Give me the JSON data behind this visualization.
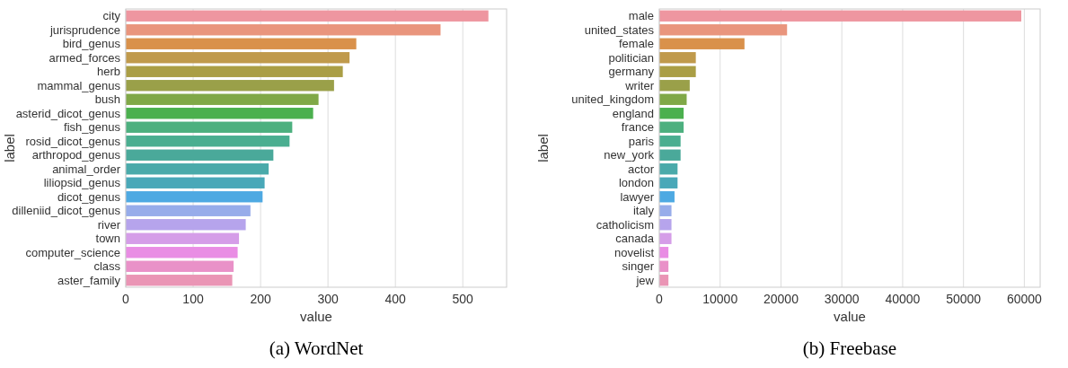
{
  "chart_data": [
    {
      "type": "bar",
      "orientation": "horizontal",
      "title": "(a) WordNet",
      "xlabel": "value",
      "ylabel": "label",
      "grid": "x",
      "categories": [
        "city",
        "jurisprudence",
        "bird_genus",
        "armed_forces",
        "herb",
        "mammal_genus",
        "bush",
        "asterid_dicot_genus",
        "fish_genus",
        "rosid_dicot_genus",
        "arthropod_genus",
        "animal_order",
        "liliopsid_genus",
        "dicot_genus",
        "dilleniid_dicot_genus",
        "river",
        "town",
        "computer_science",
        "class",
        "aster_family"
      ],
      "values": [
        538,
        467,
        342,
        332,
        322,
        309,
        286,
        278,
        247,
        243,
        219,
        212,
        206,
        203,
        185,
        178,
        168,
        166,
        160,
        158
      ],
      "colors": [
        "#ee96a0",
        "#e9957d",
        "#d9914b",
        "#c09a4c",
        "#aa9e45",
        "#9aa049",
        "#80a847",
        "#4bb04e",
        "#4db07f",
        "#4aae90",
        "#4aa99a",
        "#4aaaaa",
        "#49a8b8",
        "#4ea9e2",
        "#97acea",
        "#b6a4ec",
        "#d59de8",
        "#e98de4",
        "#e991c8",
        "#ea95b5"
      ],
      "xlim": [
        0,
        565
      ],
      "xticks": [
        0,
        100,
        200,
        300,
        400,
        500
      ]
    },
    {
      "type": "bar",
      "orientation": "horizontal",
      "title": "(b) Freebase",
      "xlabel": "value",
      "ylabel": "label",
      "grid": "x",
      "categories": [
        "male",
        "united_states",
        "female",
        "politician",
        "germany",
        "writer",
        "united_kingdom",
        "england",
        "france",
        "paris",
        "new_york",
        "actor",
        "london",
        "lawyer",
        "italy",
        "catholicism",
        "canada",
        "novelist",
        "singer",
        "jew"
      ],
      "values": [
        59500,
        21000,
        14000,
        6000,
        6000,
        5000,
        4500,
        4000,
        4000,
        3500,
        3500,
        3000,
        3000,
        2500,
        2000,
        2000,
        2000,
        1500,
        1500,
        1500
      ],
      "colors": [
        "#ee96a0",
        "#e9957d",
        "#d9914b",
        "#c09a4c",
        "#aa9e45",
        "#9aa049",
        "#80a847",
        "#4bb04e",
        "#4db07f",
        "#4aae90",
        "#4aa99a",
        "#4aaaaa",
        "#49a8b8",
        "#4ea9e2",
        "#97acea",
        "#b6a4ec",
        "#d59de8",
        "#e98de4",
        "#e991c8",
        "#ea95b5"
      ],
      "xlim": [
        0,
        62600
      ],
      "xticks": [
        0,
        10000,
        20000,
        30000,
        40000,
        50000,
        60000
      ]
    }
  ]
}
